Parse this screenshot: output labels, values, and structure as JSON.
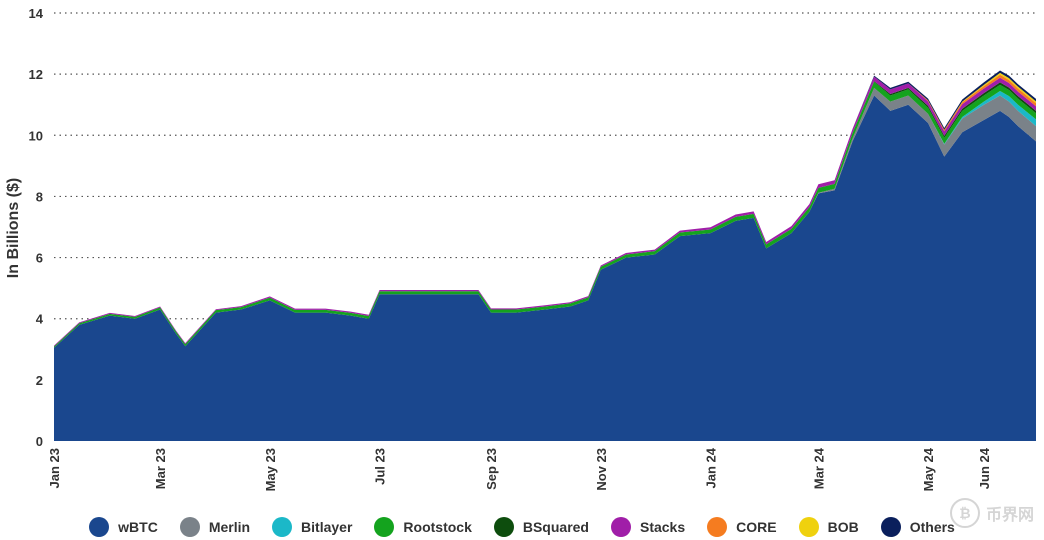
{
  "chart_data": {
    "type": "area",
    "stacked": true,
    "ylabel": "In Billions ($)",
    "ylim": [
      0,
      14
    ],
    "yticks": [
      0,
      2,
      4,
      6,
      8,
      10,
      12,
      14
    ],
    "grid": "horizontal dotted",
    "legend_position": "bottom",
    "xticks": [
      "Jan 23",
      "Mar 23",
      "May 23",
      "Jul 23",
      "Sep 23",
      "Nov 23",
      "Jan 24",
      "Mar 24",
      "May 24",
      "Jun 24"
    ],
    "x": [
      "2023-01-01",
      "2023-01-15",
      "2023-02-01",
      "2023-02-15",
      "2023-03-01",
      "2023-03-10",
      "2023-03-15",
      "2023-04-01",
      "2023-04-15",
      "2023-05-01",
      "2023-05-15",
      "2023-06-01",
      "2023-06-15",
      "2023-06-25",
      "2023-07-01",
      "2023-07-15",
      "2023-08-01",
      "2023-08-15",
      "2023-08-25",
      "2023-09-01",
      "2023-09-15",
      "2023-10-01",
      "2023-10-15",
      "2023-10-25",
      "2023-11-01",
      "2023-11-15",
      "2023-12-01",
      "2023-12-15",
      "2024-01-01",
      "2024-01-15",
      "2024-01-25",
      "2024-02-01",
      "2024-02-15",
      "2024-02-25",
      "2024-03-01",
      "2024-03-10",
      "2024-03-20",
      "2024-04-01",
      "2024-04-10",
      "2024-04-20",
      "2024-05-01",
      "2024-05-10",
      "2024-05-20",
      "2024-06-01",
      "2024-06-10",
      "2024-06-15",
      "2024-06-20",
      "2024-06-30"
    ],
    "series": [
      {
        "name": "wBTC",
        "color": "#1a478e",
        "values": [
          3.05,
          3.8,
          4.1,
          4.0,
          4.3,
          3.5,
          3.1,
          4.2,
          4.3,
          4.6,
          4.2,
          4.2,
          4.1,
          4.0,
          4.8,
          4.8,
          4.8,
          4.8,
          4.8,
          4.2,
          4.2,
          4.3,
          4.4,
          4.6,
          5.6,
          6.0,
          6.1,
          6.7,
          6.8,
          7.2,
          7.3,
          6.3,
          6.8,
          7.5,
          8.1,
          8.2,
          9.8,
          11.3,
          10.8,
          11.0,
          10.4,
          9.3,
          10.1,
          10.5,
          10.8,
          10.6,
          10.3,
          9.8
        ]
      },
      {
        "name": "Merlin",
        "color": "#7a8289",
        "values": [
          0,
          0,
          0,
          0,
          0,
          0,
          0,
          0,
          0,
          0,
          0,
          0,
          0,
          0,
          0,
          0,
          0,
          0,
          0,
          0,
          0,
          0,
          0,
          0,
          0,
          0,
          0,
          0,
          0,
          0,
          0,
          0,
          0,
          0,
          0.02,
          0.05,
          0.1,
          0.25,
          0.3,
          0.3,
          0.3,
          0.4,
          0.45,
          0.5,
          0.5,
          0.5,
          0.5,
          0.5
        ]
      },
      {
        "name": "Bitlayer",
        "color": "#1bb8c8",
        "values": [
          0,
          0,
          0,
          0,
          0,
          0,
          0,
          0,
          0,
          0,
          0,
          0,
          0,
          0,
          0,
          0,
          0,
          0,
          0,
          0,
          0,
          0,
          0,
          0,
          0,
          0,
          0,
          0,
          0,
          0,
          0,
          0,
          0,
          0,
          0,
          0,
          0,
          0,
          0,
          0,
          0,
          0.02,
          0.05,
          0.1,
          0.15,
          0.18,
          0.2,
          0.22
        ]
      },
      {
        "name": "Rootstock",
        "color": "#14a31e",
        "values": [
          0.04,
          0.05,
          0.06,
          0.06,
          0.07,
          0.07,
          0.07,
          0.08,
          0.08,
          0.09,
          0.09,
          0.09,
          0.09,
          0.09,
          0.1,
          0.1,
          0.1,
          0.1,
          0.1,
          0.1,
          0.1,
          0.1,
          0.1,
          0.1,
          0.1,
          0.1,
          0.11,
          0.12,
          0.12,
          0.13,
          0.13,
          0.13,
          0.14,
          0.15,
          0.16,
          0.16,
          0.18,
          0.2,
          0.2,
          0.2,
          0.2,
          0.2,
          0.2,
          0.2,
          0.2,
          0.2,
          0.2,
          0.2
        ]
      },
      {
        "name": "BSquared",
        "color": "#0d4d0d",
        "values": [
          0,
          0,
          0,
          0,
          0,
          0,
          0,
          0,
          0,
          0,
          0,
          0,
          0,
          0,
          0,
          0,
          0,
          0,
          0,
          0,
          0,
          0,
          0,
          0,
          0,
          0,
          0,
          0,
          0,
          0,
          0,
          0,
          0,
          0,
          0,
          0,
          0,
          0.02,
          0.05,
          0.05,
          0.06,
          0.06,
          0.07,
          0.08,
          0.08,
          0.08,
          0.08,
          0.08
        ]
      },
      {
        "name": "Stacks",
        "color": "#a01ea8",
        "values": [
          0.03,
          0.03,
          0.03,
          0.03,
          0.03,
          0.03,
          0.03,
          0.03,
          0.03,
          0.04,
          0.04,
          0.04,
          0.04,
          0.04,
          0.04,
          0.04,
          0.04,
          0.04,
          0.04,
          0.04,
          0.04,
          0.04,
          0.04,
          0.04,
          0.04,
          0.05,
          0.05,
          0.06,
          0.07,
          0.08,
          0.08,
          0.08,
          0.09,
          0.1,
          0.12,
          0.12,
          0.13,
          0.15,
          0.15,
          0.15,
          0.15,
          0.15,
          0.15,
          0.15,
          0.15,
          0.15,
          0.15,
          0.15
        ]
      },
      {
        "name": "CORE",
        "color": "#f57c20",
        "values": [
          0,
          0,
          0,
          0,
          0,
          0,
          0,
          0,
          0,
          0,
          0,
          0,
          0,
          0,
          0,
          0,
          0,
          0,
          0,
          0,
          0,
          0,
          0,
          0,
          0,
          0,
          0,
          0,
          0,
          0,
          0,
          0,
          0,
          0,
          0,
          0,
          0,
          0,
          0,
          0,
          0.03,
          0.05,
          0.06,
          0.08,
          0.1,
          0.1,
          0.1,
          0.1
        ]
      },
      {
        "name": "BOB",
        "color": "#efd10e",
        "values": [
          0,
          0,
          0,
          0,
          0,
          0,
          0,
          0,
          0,
          0,
          0,
          0,
          0,
          0,
          0,
          0,
          0,
          0,
          0,
          0,
          0,
          0,
          0,
          0,
          0,
          0,
          0,
          0,
          0,
          0,
          0,
          0,
          0,
          0,
          0,
          0,
          0,
          0,
          0,
          0,
          0,
          0,
          0.02,
          0.04,
          0.06,
          0.06,
          0.06,
          0.06
        ]
      },
      {
        "name": "Others",
        "color": "#0a1f5c",
        "values": [
          0,
          0,
          0,
          0,
          0,
          0,
          0,
          0,
          0,
          0,
          0,
          0,
          0,
          0,
          0,
          0,
          0,
          0,
          0,
          0,
          0,
          0,
          0,
          0,
          0,
          0,
          0,
          0,
          0,
          0,
          0,
          0,
          0,
          0,
          0,
          0,
          0,
          0.03,
          0.05,
          0.05,
          0.06,
          0.06,
          0.07,
          0.08,
          0.08,
          0.08,
          0.08,
          0.08
        ]
      }
    ]
  },
  "watermark": {
    "text": "币界网",
    "icon": "bitcoin-coin-icon"
  }
}
